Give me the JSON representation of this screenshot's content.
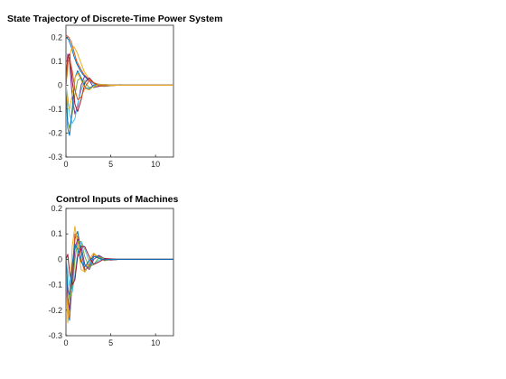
{
  "chart_data": [
    {
      "type": "line",
      "title": "State Trajectory of Discrete-Time Power System",
      "xlabel": "",
      "ylabel": "",
      "xlim": [
        0,
        12
      ],
      "ylim": [
        -0.3,
        0.25
      ],
      "xticks": [
        0,
        5,
        10
      ],
      "yticks": [
        -0.3,
        -0.2,
        -0.1,
        0,
        0.1,
        0.2
      ],
      "grid": false,
      "legend": "none",
      "series_note_color_order": [
        "#0072BD",
        "#D95319",
        "#EDB120",
        "#7E2F8E",
        "#77AC30",
        "#4DBEEE",
        "#A2142F"
      ],
      "series": [
        {
          "x": [
            0,
            0.3,
            0.6,
            0.9,
            1.2,
            1.6,
            2.0,
            2.5,
            3.0,
            3.6,
            4.2,
            5,
            6,
            7,
            8,
            9,
            10,
            11,
            12
          ],
          "y": [
            0.2,
            0.19,
            0.16,
            0.12,
            0.09,
            0.06,
            0.04,
            0.02,
            0.01,
            0.0,
            -0.005,
            -0.003,
            0.002,
            0.0,
            0,
            0,
            0,
            0,
            0
          ]
        },
        {
          "x": [
            0,
            0.3,
            0.6,
            0.9,
            1.2,
            1.6,
            2.0,
            2.5,
            3.0,
            3.6,
            4.2,
            5,
            6,
            7,
            8,
            9,
            10,
            11,
            12
          ],
          "y": [
            0.21,
            0.2,
            0.18,
            0.14,
            0.1,
            0.07,
            0.045,
            0.025,
            0.012,
            0.004,
            0.0,
            -0.002,
            0.0,
            0,
            0,
            0,
            0,
            0,
            0
          ]
        },
        {
          "x": [
            0,
            0.3,
            0.6,
            0.9,
            1.2,
            1.6,
            2.0,
            2.5,
            3.0,
            3.6,
            4.2,
            5,
            6,
            7,
            8,
            9,
            10,
            11,
            12
          ],
          "y": [
            0.0,
            0.1,
            0.15,
            0.16,
            0.14,
            0.1,
            0.06,
            0.03,
            0.01,
            0.0,
            -0.004,
            -0.002,
            0.001,
            0,
            0,
            0,
            0,
            0,
            0
          ]
        },
        {
          "x": [
            0,
            0.2,
            0.4,
            0.7,
            1.0,
            1.3,
            1.7,
            2.1,
            2.6,
            3.1,
            3.7,
            4.3,
            5,
            6,
            7,
            8,
            9,
            10,
            11,
            12
          ],
          "y": [
            0.0,
            0.13,
            0.1,
            -0.05,
            -0.12,
            -0.09,
            0.0,
            0.04,
            0.02,
            -0.01,
            -0.005,
            0.003,
            0.001,
            0,
            0,
            0,
            0,
            0,
            0,
            0
          ]
        },
        {
          "x": [
            0,
            0.2,
            0.4,
            0.7,
            1.0,
            1.3,
            1.7,
            2.1,
            2.6,
            3.1,
            3.7,
            4.3,
            5,
            6,
            7,
            8,
            9,
            10,
            11,
            12
          ],
          "y": [
            0.0,
            -0.15,
            -0.18,
            -0.12,
            -0.04,
            0.02,
            0.03,
            0.01,
            -0.01,
            -0.008,
            0.002,
            0.002,
            0.0,
            0,
            0,
            0,
            0,
            0,
            0,
            0
          ]
        },
        {
          "x": [
            0,
            0.2,
            0.4,
            0.7,
            1.0,
            1.3,
            1.7,
            2.1,
            2.6,
            3.1,
            3.7,
            4.3,
            5,
            6,
            7,
            8,
            9,
            10,
            11,
            12
          ],
          "y": [
            0.0,
            -0.05,
            -0.12,
            -0.16,
            -0.14,
            -0.08,
            -0.02,
            0.02,
            0.02,
            0.005,
            -0.004,
            -0.002,
            0.0,
            0,
            0,
            0,
            0,
            0,
            0,
            0
          ]
        },
        {
          "x": [
            0,
            0.2,
            0.4,
            0.7,
            1.0,
            1.3,
            1.7,
            2.1,
            2.6,
            3.1,
            3.7,
            4.3,
            5,
            6,
            7,
            8,
            9,
            10,
            11,
            12
          ],
          "y": [
            0.0,
            0.12,
            0.13,
            0.02,
            -0.08,
            -0.11,
            -0.06,
            0.01,
            0.03,
            0.01,
            -0.005,
            -0.002,
            0.0,
            0,
            0,
            0,
            0,
            0,
            0,
            0
          ]
        },
        {
          "x": [
            0,
            0.2,
            0.4,
            0.7,
            1.0,
            1.3,
            1.7,
            2.1,
            2.6,
            3.1,
            3.7,
            4.3,
            5,
            6,
            7,
            8,
            9,
            10,
            11,
            12
          ],
          "y": [
            0.0,
            -0.18,
            -0.21,
            -0.1,
            0.03,
            0.06,
            0.03,
            -0.01,
            -0.015,
            0.0,
            0.004,
            0.001,
            0.0,
            0,
            0,
            0,
            0,
            0,
            0,
            0
          ]
        },
        {
          "x": [
            0,
            0.2,
            0.4,
            0.7,
            1.0,
            1.3,
            1.7,
            2.1,
            2.6,
            3.1,
            3.7,
            4.3,
            5,
            6,
            7,
            8,
            9,
            10,
            11,
            12
          ],
          "y": [
            0.0,
            0.1,
            0.11,
            0.06,
            -0.02,
            -0.06,
            -0.05,
            -0.01,
            0.02,
            0.01,
            -0.003,
            -0.002,
            0.0,
            0,
            0,
            0,
            0,
            0,
            0,
            0
          ]
        },
        {
          "x": [
            0,
            0.2,
            0.4,
            0.7,
            1.0,
            1.3,
            1.7,
            2.1,
            2.6,
            3.1,
            3.7,
            4.3,
            5,
            6,
            7,
            8,
            9,
            10,
            11,
            12
          ],
          "y": [
            0.0,
            -0.08,
            -0.1,
            -0.04,
            0.03,
            0.05,
            0.02,
            -0.015,
            -0.02,
            -0.005,
            0.003,
            0.002,
            0.0,
            0,
            0,
            0,
            0,
            0,
            0,
            0
          ]
        }
      ]
    },
    {
      "type": "line",
      "title": "Control Inputs of Machines",
      "xlabel": "",
      "ylabel": "",
      "xlim": [
        0,
        12
      ],
      "ylim": [
        -0.3,
        0.2
      ],
      "xticks": [
        0,
        5,
        10
      ],
      "yticks": [
        -0.3,
        -0.2,
        -0.1,
        0,
        0.1,
        0.2
      ],
      "grid": false,
      "legend": "none",
      "series": [
        {
          "x": [
            0,
            0.2,
            0.4,
            0.7,
            1.0,
            1.3,
            1.7,
            2.1,
            2.6,
            3.1,
            3.7,
            4.3,
            5,
            6,
            7,
            8,
            9,
            10,
            11,
            12
          ],
          "y": [
            0.0,
            -0.2,
            -0.24,
            -0.08,
            0.08,
            0.11,
            0.03,
            -0.04,
            -0.03,
            0.01,
            0.015,
            0.0,
            -0.003,
            0,
            0,
            0,
            0,
            0,
            0,
            0
          ]
        },
        {
          "x": [
            0,
            0.2,
            0.4,
            0.7,
            1.0,
            1.3,
            1.7,
            2.1,
            2.6,
            3.1,
            3.7,
            4.3,
            5,
            6,
            7,
            8,
            9,
            10,
            11,
            12
          ],
          "y": [
            0.0,
            -0.22,
            -0.23,
            -0.05,
            0.1,
            0.09,
            0.0,
            -0.05,
            -0.02,
            0.02,
            0.01,
            -0.004,
            -0.002,
            0,
            0,
            0,
            0,
            0,
            0,
            0
          ]
        },
        {
          "x": [
            0,
            0.2,
            0.4,
            0.7,
            1.0,
            1.3,
            1.7,
            2.1,
            2.6,
            3.1,
            3.7,
            4.3,
            5,
            6,
            7,
            8,
            9,
            10,
            11,
            12
          ],
          "y": [
            0.0,
            -0.25,
            -0.18,
            0.05,
            0.13,
            0.06,
            -0.04,
            -0.05,
            0.0,
            0.025,
            0.005,
            -0.006,
            0.0,
            0,
            0,
            0,
            0,
            0,
            0,
            0
          ]
        },
        {
          "x": [
            0,
            0.2,
            0.4,
            0.7,
            1.0,
            1.3,
            1.7,
            2.1,
            2.6,
            3.1,
            3.7,
            4.3,
            5,
            6,
            7,
            8,
            9,
            10,
            11,
            12
          ],
          "y": [
            0.0,
            -0.15,
            -0.2,
            -0.1,
            0.04,
            0.08,
            0.05,
            -0.02,
            -0.04,
            0.0,
            0.015,
            0.003,
            -0.002,
            0,
            0,
            0,
            0,
            0,
            0,
            0
          ]
        },
        {
          "x": [
            0,
            0.2,
            0.4,
            0.7,
            1.0,
            1.3,
            1.7,
            2.1,
            2.6,
            3.1,
            3.7,
            4.3,
            5,
            6,
            7,
            8,
            9,
            10,
            11,
            12
          ],
          "y": [
            0.0,
            -0.1,
            -0.16,
            -0.12,
            0.0,
            0.07,
            0.07,
            0.01,
            -0.03,
            -0.02,
            0.008,
            0.004,
            0.0,
            0,
            0,
            0,
            0,
            0,
            0,
            0
          ]
        },
        {
          "x": [
            0,
            0.2,
            0.4,
            0.7,
            1.0,
            1.3,
            1.7,
            2.1,
            2.6,
            3.1,
            3.7,
            4.3,
            5,
            6,
            7,
            8,
            9,
            10,
            11,
            12
          ],
          "y": [
            0.0,
            -0.05,
            -0.1,
            -0.13,
            -0.06,
            0.03,
            0.07,
            0.04,
            -0.01,
            -0.02,
            -0.003,
            0.004,
            0.001,
            0,
            0,
            0,
            0,
            0,
            0,
            0
          ]
        },
        {
          "x": [
            0,
            0.2,
            0.4,
            0.7,
            1.0,
            1.3,
            1.7,
            2.1,
            2.6,
            3.1,
            3.7,
            4.3,
            5,
            6,
            7,
            8,
            9,
            10,
            11,
            12
          ],
          "y": [
            0.0,
            0.02,
            -0.05,
            -0.1,
            -0.08,
            0.01,
            0.05,
            0.05,
            0.01,
            -0.02,
            -0.01,
            0.003,
            0.002,
            0,
            0,
            0,
            0,
            0,
            0,
            0
          ]
        },
        {
          "x": [
            0,
            0.2,
            0.4,
            0.7,
            1.0,
            1.3,
            1.7,
            2.1,
            2.6,
            3.1,
            3.7,
            4.3,
            5,
            6,
            7,
            8,
            9,
            10,
            11,
            12
          ],
          "y": [
            0.0,
            -0.12,
            -0.14,
            -0.02,
            0.06,
            0.04,
            -0.01,
            -0.03,
            -0.005,
            0.012,
            0.004,
            -0.003,
            0.0,
            0,
            0,
            0,
            0,
            0,
            0,
            0
          ]
        }
      ]
    }
  ],
  "colors": [
    "#0072BD",
    "#D95319",
    "#EDB120",
    "#7E2F8E",
    "#77AC30",
    "#4DBEEE",
    "#A2142F"
  ],
  "tick_labels": {
    "top": {
      "x": [
        "0",
        "5",
        "10"
      ],
      "y": [
        "-0.3",
        "-0.2",
        "-0.1",
        "0",
        "0.1",
        "0.2"
      ]
    },
    "bottom": {
      "x": [
        "0",
        "5",
        "10"
      ],
      "y": [
        "-0.3",
        "-0.2",
        "-0.1",
        "0",
        "0.1",
        "0.2"
      ]
    }
  }
}
